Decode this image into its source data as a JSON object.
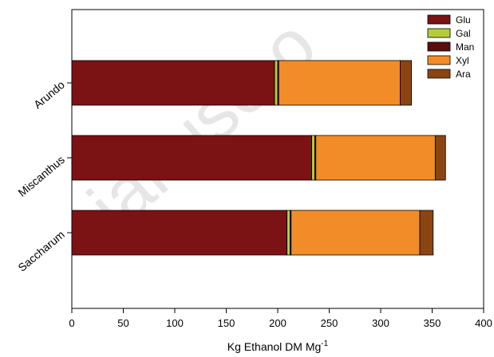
{
  "chart_data": {
    "type": "bar",
    "orientation": "horizontal",
    "stacked": true,
    "categories": [
      "Arundo",
      "Miscanthus",
      "Saccharum"
    ],
    "series": [
      {
        "name": "Glu",
        "color": "#7b1214",
        "values": [
          197,
          233,
          209
        ]
      },
      {
        "name": "Gal",
        "color": "#b5cc3a",
        "values": [
          3,
          3,
          3
        ]
      },
      {
        "name": "Man",
        "color": "#5a0e0e",
        "values": [
          1,
          1,
          1
        ]
      },
      {
        "name": "Xyl",
        "color": "#f28c28",
        "values": [
          118,
          116,
          125
        ]
      },
      {
        "name": "Ara",
        "color": "#8b4513",
        "values": [
          11,
          10,
          13
        ]
      }
    ],
    "xlabel": "Kg Ethanol DM Mg",
    "xlabel_superscript": "-1",
    "xlim": [
      0,
      400
    ],
    "xticks": [
      0,
      50,
      100,
      150,
      200,
      250,
      300,
      350,
      400
    ],
    "grid": false,
    "legend_position": "top-right"
  },
  "watermark": {
    "text": "cial use o",
    "color": "#e6e6e6"
  }
}
